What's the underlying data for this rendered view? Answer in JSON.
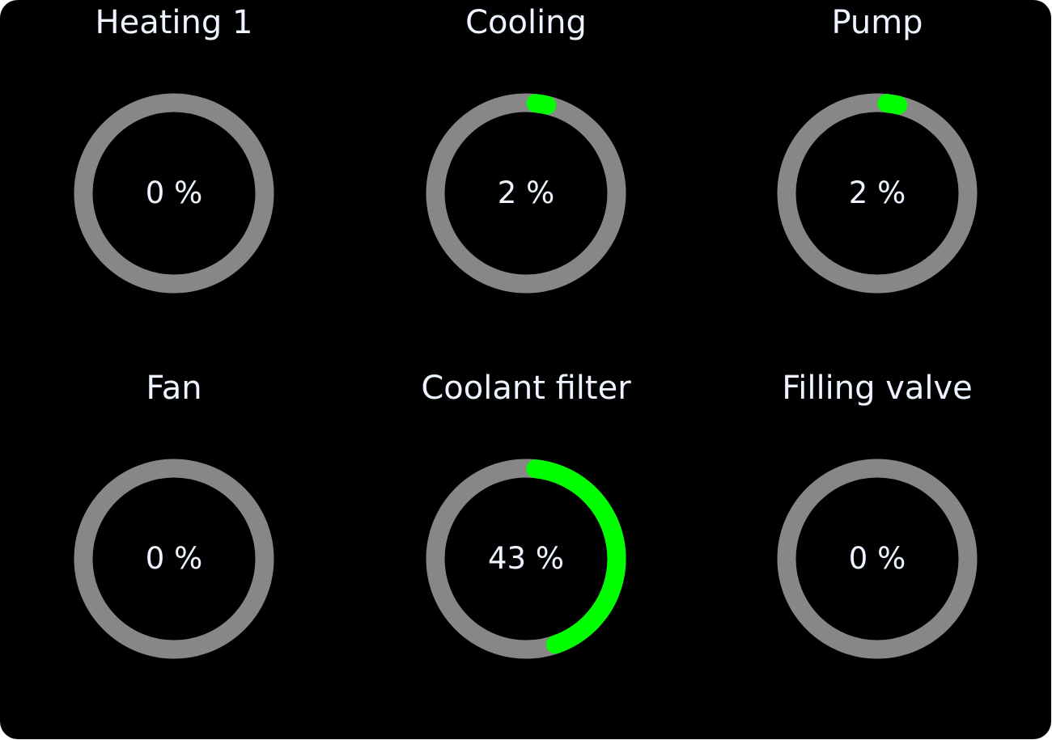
{
  "colors": {
    "track": "#878787",
    "fill": "#00ff00",
    "background": "#000000",
    "text": "#eef4ff"
  },
  "gauges": [
    {
      "label": "Heating 1",
      "value_text": "0 %",
      "percent": 0
    },
    {
      "label": "Cooling",
      "value_text": "2 %",
      "percent": 2
    },
    {
      "label": "Pump",
      "value_text": "2 %",
      "percent": 2
    },
    {
      "label": "Fan",
      "value_text": "0 %",
      "percent": 0
    },
    {
      "label": "Coolant filter",
      "value_text": "43 %",
      "percent": 43
    },
    {
      "label": "Filling valve",
      "value_text": "0 %",
      "percent": 0
    }
  ]
}
